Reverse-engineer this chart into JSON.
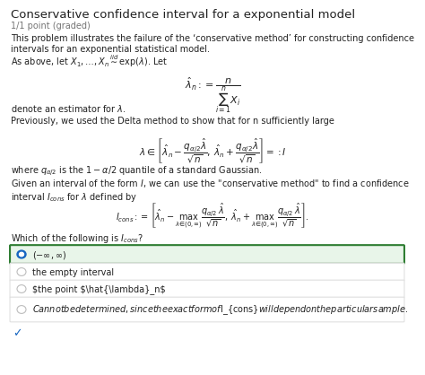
{
  "title": "Conservative confidence interval for a exponential model",
  "subtitle": "1/1 point (graded)",
  "body_text_1": "This problem illustrates the failure of the ‘conservative method’ for constructing confidence intervals for an exponential statistical model.",
  "body_text_2": "As above, let $X_1, \\ldots, X_n \\overset{iid}{\\sim} \\exp(\\lambda)$. Let",
  "formula_1": "$\\hat{\\lambda}_n := \\dfrac{n}{\\sum_{i=1}^{n} X_i}$",
  "body_text_3": "denote an estimator for $\\lambda$.",
  "body_text_4": "Previously, we used the Delta method to show that for n sufficiently large",
  "formula_2": "$\\lambda \\in \\left[\\hat{\\lambda}_n - \\dfrac{q_{\\alpha/2}\\hat{\\lambda}}{\\sqrt{n}},\\; \\hat{\\lambda}_n + \\dfrac{q_{\\alpha/2}\\hat{\\lambda}}{\\sqrt{n}}\\right] =: I$",
  "body_text_5": "where $q_{\\alpha/2}$ is the $1 - \\alpha/2$ quantile of a standard Gaussian.",
  "body_text_6": "Given an interval of the form $I$, we can use the “conservative method” to find a confidence interval $I_{cons}$ for $\\lambda$ defined by",
  "formula_3": "$I_{cons} := \\left[\\hat{\\lambda}_n - \\max_{\\lambda \\in (0,\\infty)} \\dfrac{q_{\\alpha/2}\\hat{\\lambda}}{\\sqrt{n}},\\; \\hat{\\lambda}_n + \\max_{\\lambda \\in (0,\\infty)} \\dfrac{q_{\\alpha/2}\\hat{\\lambda}}{\\sqrt{n}}\\right].$",
  "question": "Which of the following is $I_{cons}$?",
  "options": [
    "$(- \\infty, \\infty)$",
    "the empty interval",
    "the point $\\hat{\\lambda}_n$",
    "Cannot be determined, since the exact form of $I_{cons}$ will depend on the particular sample."
  ],
  "correct_option": 0,
  "background_color": "#ffffff",
  "selected_option_border": "#2e7d32",
  "selected_option_bg": "#e8f5e9",
  "radio_selected_color": "#1565c0",
  "radio_unselected_color": "#bdbdbd",
  "checkmark_color": "#1565c0",
  "title_color": "#212121",
  "subtitle_color": "#757575",
  "body_color": "#212121",
  "option_border_color": "#e0e0e0"
}
